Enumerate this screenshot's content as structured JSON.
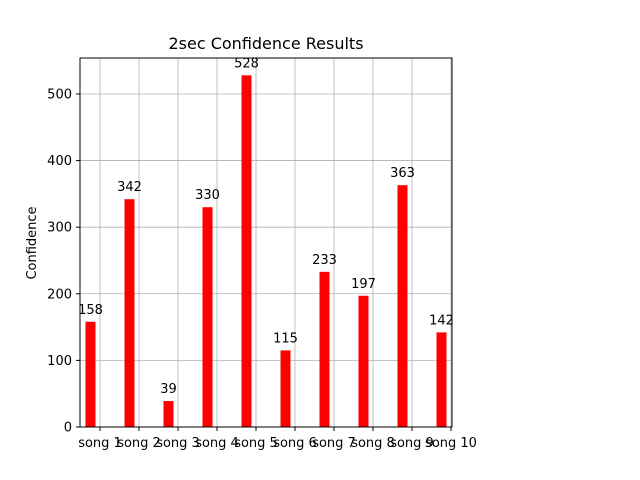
{
  "chart_data": {
    "type": "bar",
    "title": "2sec Confidence Results",
    "xlabel": "",
    "ylabel": "Confidence",
    "categories": [
      "song 1",
      "song 2",
      "song 3",
      "song 4",
      "song 5",
      "song 6",
      "song 7",
      "song 8",
      "song 9",
      "song 10"
    ],
    "values": [
      158,
      342,
      39,
      330,
      528,
      115,
      233,
      197,
      363,
      142
    ],
    "ylim": [
      0,
      554
    ],
    "yticks": [
      0,
      100,
      200,
      300,
      400,
      500
    ],
    "grid": true,
    "bar_color": "#ff0000"
  }
}
